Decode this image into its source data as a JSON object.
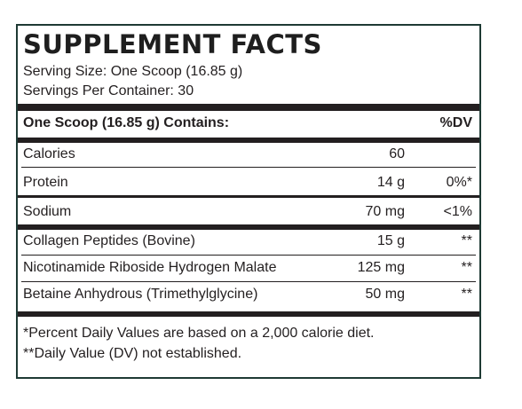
{
  "title": "SUPPLEMENT FACTS",
  "serving_size": "Serving Size: One Scoop (16.85 g)",
  "servings_per_container": "Servings Per Container: 30",
  "header": {
    "contains": "One Scoop (16.85 g) Contains:",
    "dv": "%DV"
  },
  "rows": [
    {
      "name": "Calories",
      "amount": "60",
      "dv": ""
    },
    {
      "name": "Protein",
      "amount": "14 g",
      "dv": "0%*"
    },
    {
      "name": "Sodium",
      "amount": "70 mg",
      "dv": "<1%"
    },
    {
      "name": "Collagen Peptides (Bovine)",
      "amount": "15 g",
      "dv": "**"
    },
    {
      "name": "Nicotinamide Riboside Hydrogen Malate",
      "amount": "125 mg",
      "dv": "**"
    },
    {
      "name": "Betaine Anhydrous (Trimethylglycine)",
      "amount": "50 mg",
      "dv": "**"
    }
  ],
  "footnotes": [
    "*Percent Daily Values are based on a 2,000 calorie diet.",
    "**Daily Value (DV) not established."
  ],
  "colors": {
    "border": "#1e3a34",
    "text": "#231f20",
    "background": "#ffffff"
  }
}
